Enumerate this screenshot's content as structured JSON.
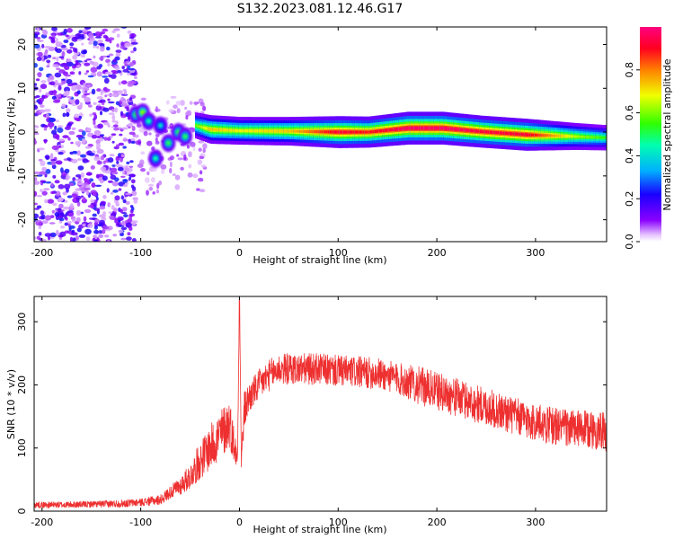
{
  "chart_data": [
    {
      "type": "heatmap",
      "title": "S132.2023.081.12.46.G17",
      "xlabel": "Height of straight line (km)",
      "ylabel": "Frequency (Hz)",
      "xlim": [
        -208,
        372
      ],
      "ylim": [
        -25,
        24
      ],
      "xticks": [
        -200,
        -100,
        0,
        100,
        200,
        300
      ],
      "yticks": [
        -20,
        -10,
        0,
        10,
        20
      ],
      "colorbar": {
        "label": "Normalized spectral amplitude",
        "range": [
          0,
          1
        ],
        "ticks": [
          "0.0",
          "0.2",
          "0.4",
          "0.6",
          "0.8"
        ],
        "ticks_values": [
          0,
          0.2,
          0.4,
          0.6,
          0.8
        ],
        "colormap": "gist_rainbow (violet → blue → cyan → green → yellow → orange → red → pink)"
      },
      "ridge": {
        "description": "Strong narrow-band component near 0 Hz from about -40 km to 372 km; scattered noise below -110 km",
        "points": [
          {
            "x": -45,
            "y": 1.5,
            "amplitude": 0.55
          },
          {
            "x": -30,
            "y": 0.6,
            "amplitude": 0.7
          },
          {
            "x": 0,
            "y": 0.3,
            "amplitude": 0.65
          },
          {
            "x": 50,
            "y": 0.2,
            "amplitude": 0.7
          },
          {
            "x": 100,
            "y": 0.0,
            "amplitude": 0.9
          },
          {
            "x": 130,
            "y": 0.0,
            "amplitude": 0.85
          },
          {
            "x": 170,
            "y": 0.9,
            "amplitude": 0.95
          },
          {
            "x": 205,
            "y": 0.9,
            "amplitude": 0.95
          },
          {
            "x": 245,
            "y": 0.1,
            "amplitude": 0.9
          },
          {
            "x": 290,
            "y": -0.6,
            "amplitude": 0.9
          },
          {
            "x": 340,
            "y": -1.0,
            "amplitude": 0.6
          },
          {
            "x": 372,
            "y": -1.3,
            "amplitude": 0.5
          }
        ],
        "transition_blobs": [
          {
            "x": -105,
            "y": 4.0,
            "amplitude": 0.5
          },
          {
            "x": -98,
            "y": 4.5,
            "amplitude": 0.6
          },
          {
            "x": -92,
            "y": 2.5,
            "amplitude": 0.45
          },
          {
            "x": -85,
            "y": -6.0,
            "amplitude": 0.45
          },
          {
            "x": -80,
            "y": 1.5,
            "amplitude": 0.4
          },
          {
            "x": -72,
            "y": -2.5,
            "amplitude": 0.5
          },
          {
            "x": -62,
            "y": 0.0,
            "amplitude": 0.5
          },
          {
            "x": -55,
            "y": -1.0,
            "amplitude": 0.5
          }
        ]
      }
    },
    {
      "type": "line",
      "xlabel": "Height of straight line (km)",
      "ylabel": "SNR (10 * v/v)",
      "xlim": [
        -208,
        372
      ],
      "ylim": [
        0,
        340
      ],
      "xticks": [
        -200,
        -100,
        0,
        100,
        200,
        300
      ],
      "yticks": [
        0,
        100,
        200,
        300
      ],
      "series": [
        {
          "color": "#ee3030",
          "x": [
            -208,
            -180,
            -150,
            -120,
            -100,
            -80,
            -70,
            -60,
            -50,
            -40,
            -30,
            -20,
            -10,
            -2,
            0,
            2,
            5,
            10,
            20,
            30,
            40,
            60,
            80,
            100,
            120,
            140,
            160,
            180,
            200,
            220,
            240,
            260,
            280,
            300,
            320,
            340,
            360,
            372
          ],
          "mean": [
            10,
            10,
            11,
            12,
            14,
            18,
            30,
            40,
            55,
            80,
            100,
            120,
            140,
            80,
            335,
            80,
            160,
            180,
            200,
            215,
            225,
            225,
            225,
            222,
            220,
            218,
            210,
            200,
            190,
            180,
            170,
            160,
            150,
            140,
            135,
            130,
            128,
            125
          ],
          "noise": [
            5,
            5,
            5,
            6,
            6,
            8,
            10,
            15,
            20,
            30,
            35,
            40,
            40,
            20,
            0,
            20,
            30,
            25,
            25,
            25,
            25,
            25,
            25,
            25,
            25,
            25,
            25,
            30,
            30,
            30,
            30,
            30,
            30,
            30,
            30,
            30,
            30,
            30
          ]
        }
      ]
    }
  ]
}
